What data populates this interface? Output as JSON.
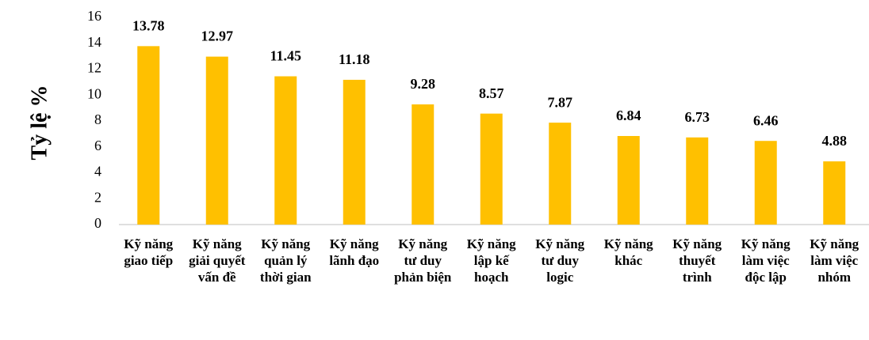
{
  "chart_data": {
    "type": "bar",
    "y_label": "Tỷ lệ %",
    "categories": [
      "Kỹ năng giao tiếp",
      "Kỹ năng giải quyết vấn đề",
      "Kỹ năng quản lý thời gian",
      "Kỹ năng lãnh đạo",
      "Kỹ năng tư duy phản biện",
      "Kỹ năng lập kế hoạch",
      "Kỹ năng tư duy logic",
      "Kỹ năng khác",
      "Kỹ năng thuyết trình",
      "Kỹ năng làm việc độc lập",
      "Kỹ năng làm việc nhóm"
    ],
    "values": [
      13.78,
      12.97,
      11.45,
      11.18,
      9.28,
      8.57,
      7.87,
      6.84,
      6.73,
      6.46,
      4.88
    ],
    "color": "#ffc000",
    "ylim": [
      0,
      16
    ],
    "yticks": [
      0,
      2,
      4,
      6,
      8,
      10,
      12,
      14,
      16
    ],
    "grid": false
  }
}
